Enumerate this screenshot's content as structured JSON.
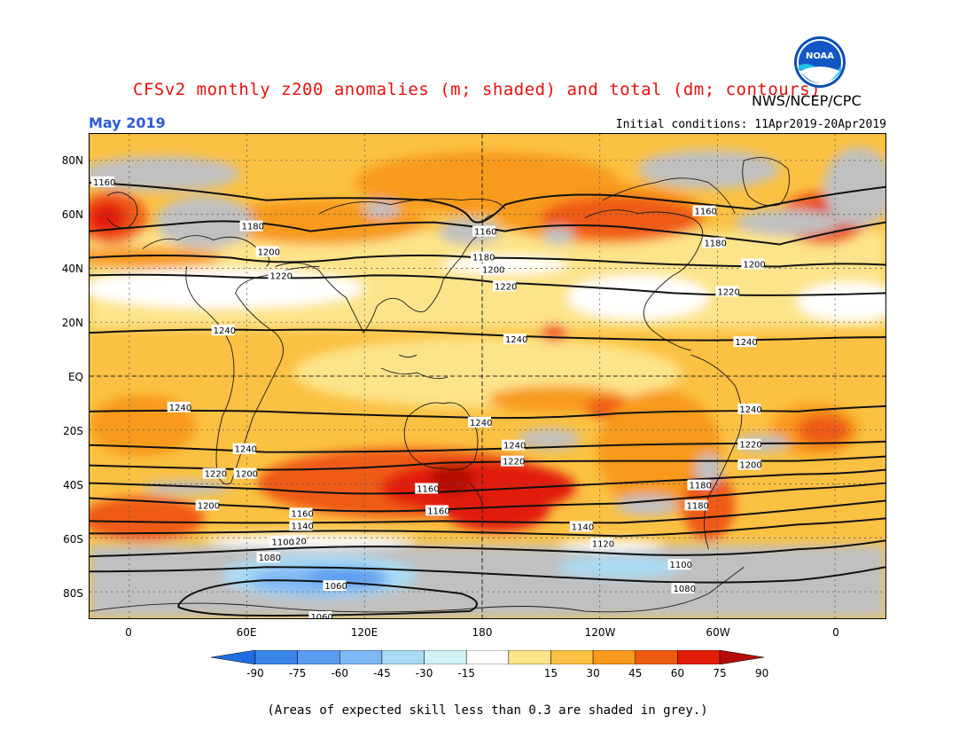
{
  "title": "CFSv2 monthly z200 anomalies (m; shaded) and total (dm; contours)",
  "agency": "NWS/NCEP/CPC",
  "logo_text": "NOAA",
  "month": "May 2019",
  "initial_conditions": "Initial conditions: 11Apr2019-20Apr2019",
  "footnote": "(Areas of expected skill less than 0.3 are shaded in grey.)",
  "lat_labels": [
    "80N",
    "60N",
    "40N",
    "20N",
    "EQ",
    "20S",
    "40S",
    "60S",
    "80S"
  ],
  "lon_labels": [
    "0",
    "60E",
    "120E",
    "180",
    "120W",
    "60W",
    "0"
  ],
  "colorbar": {
    "labels": [
      "-90",
      "-75",
      "-60",
      "-45",
      "-30",
      "-15",
      "15",
      "30",
      "45",
      "60",
      "75",
      "90"
    ],
    "colors": [
      "#1e6ee0",
      "#3a85e8",
      "#5a9cf0",
      "#80b8f4",
      "#a9dcf4",
      "#d2f2f8",
      "#ffffff",
      "#fde48a",
      "#fbc142",
      "#f89a1c",
      "#ef5a12",
      "#e21d08",
      "#b50d06"
    ]
  },
  "contour_labels": [
    "1160",
    "1180",
    "1200",
    "1220",
    "1240",
    "1160",
    "1180",
    "1200",
    "1220",
    "1240",
    "1160",
    "1180",
    "1200",
    "1220",
    "1240",
    "1240",
    "1240",
    "1240",
    "1240",
    "1220",
    "1200",
    "1160",
    "1240",
    "1220",
    "1200",
    "1180",
    "1160",
    "1140",
    "1120",
    "1220",
    "1200",
    "1180",
    "1160",
    "1140",
    "1120",
    "1100",
    "1100",
    "1080",
    "1060",
    "1060",
    "1080"
  ],
  "colors": {
    "title": "#e8110f",
    "month": "#2b5bd8",
    "grey_mask": "#c0c0c0"
  }
}
